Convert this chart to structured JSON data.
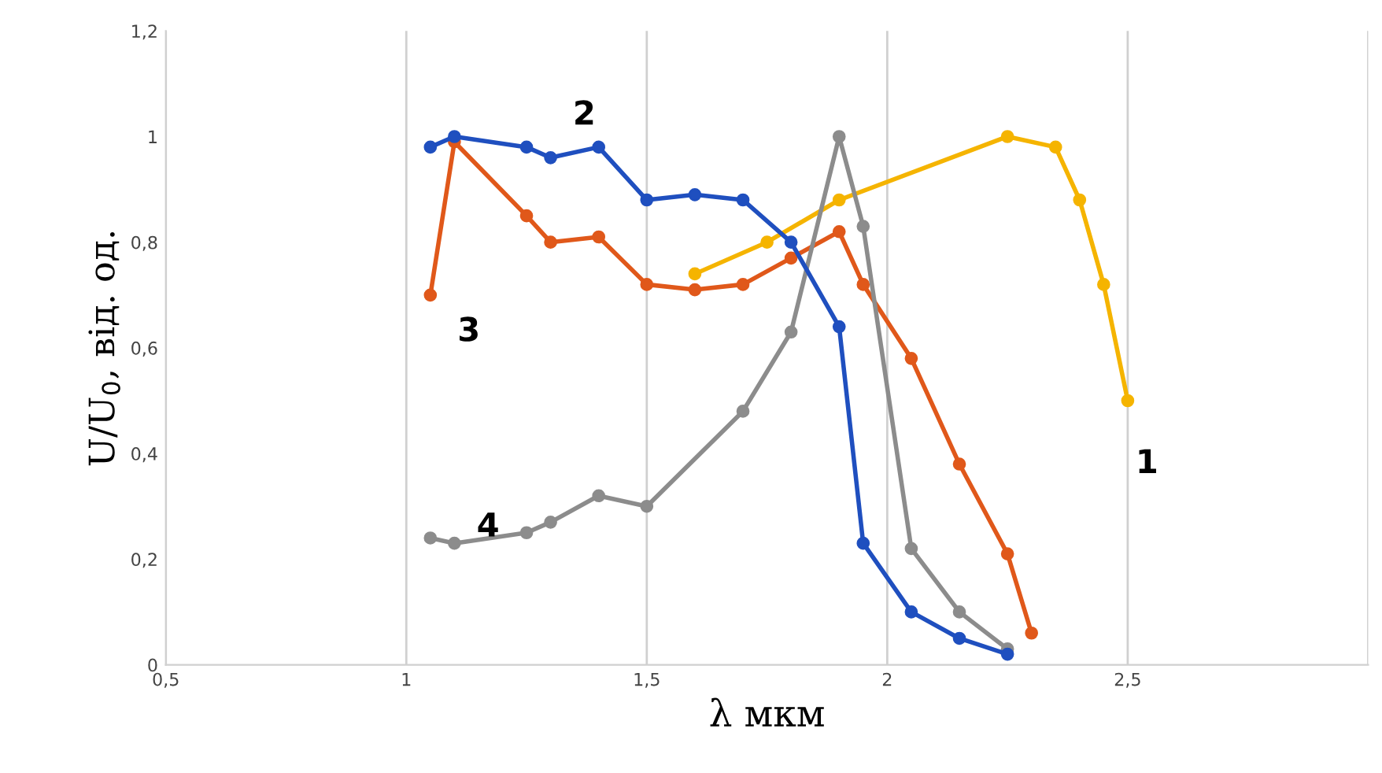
{
  "chart_data": {
    "type": "line",
    "xlabel": "λ мкм",
    "ylabel": "U/U$_{0}$, від. од.",
    "xlim": [
      0.5,
      3.0
    ],
    "ylim": [
      0,
      1.2
    ],
    "xticks": [
      {
        "value": 0.5,
        "label": "0,5"
      },
      1,
      {
        "value": 1.5,
        "label": "1,5"
      },
      2,
      {
        "value": 2.5,
        "label": "2,5"
      },
      {
        "value": 3.0,
        "label": null
      }
    ],
    "yticks": [
      0,
      {
        "value": 0.2,
        "label": "0,2"
      },
      {
        "value": 0.4,
        "label": "0,4"
      },
      {
        "value": 0.6,
        "label": "0,6"
      },
      {
        "value": 0.8,
        "label": "0,8"
      },
      1,
      {
        "value": 1.2,
        "label": "1,2"
      }
    ],
    "grid": "x",
    "marker": "circle",
    "line_style": "solid",
    "legend": false,
    "series": [
      {
        "name": "1",
        "color": "#f5b400",
        "x": [
          1.6,
          1.75,
          1.9,
          2.25,
          2.35,
          2.4,
          2.45,
          2.5
        ],
        "values": [
          0.74,
          0.8,
          0.88,
          1.0,
          0.98,
          0.88,
          0.72,
          0.5
        ]
      },
      {
        "name": "3",
        "color": "#e0581a",
        "x": [
          1.05,
          1.1,
          1.25,
          1.3,
          1.4,
          1.5,
          1.6,
          1.7,
          1.8,
          1.9,
          1.95,
          2.05,
          2.15,
          2.25,
          2.3
        ],
        "values": [
          0.7,
          0.99,
          0.85,
          0.8,
          0.81,
          0.72,
          0.71,
          0.72,
          0.77,
          0.82,
          0.72,
          0.58,
          0.38,
          0.21,
          0.06
        ]
      },
      {
        "name": "4",
        "color": "#8c8c8c",
        "x": [
          1.05,
          1.1,
          1.25,
          1.3,
          1.4,
          1.5,
          1.7,
          1.8,
          1.9,
          1.95,
          2.05,
          2.15,
          2.25
        ],
        "values": [
          0.24,
          0.23,
          0.25,
          0.27,
          0.32,
          0.3,
          0.48,
          0.63,
          1.0,
          0.83,
          0.22,
          0.1,
          0.03
        ]
      },
      {
        "name": "2",
        "color": "#1f4fbf",
        "x": [
          1.05,
          1.1,
          1.25,
          1.3,
          1.4,
          1.5,
          1.6,
          1.7,
          1.8,
          1.9,
          1.95,
          2.05,
          2.15,
          2.25
        ],
        "values": [
          0.98,
          1.0,
          0.98,
          0.96,
          0.98,
          0.88,
          0.89,
          0.88,
          0.8,
          0.64,
          0.23,
          0.1,
          0.05,
          0.02
        ]
      }
    ]
  }
}
